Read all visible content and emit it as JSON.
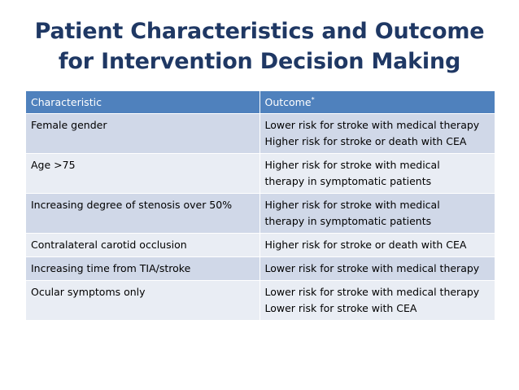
{
  "slide": {
    "title_line1": "Patient Characteristics and Outcome",
    "title_line2": "for Intervention Decision Making"
  },
  "table": {
    "header": {
      "col1": "Characteristic",
      "col2": "Outcome",
      "col2_sup": "*"
    },
    "rows": [
      {
        "characteristic": "Female gender",
        "outcome": [
          "Lower risk for stroke with medical therapy",
          "Higher risk for stroke or death with CEA"
        ]
      },
      {
        "characteristic": "Age >75",
        "outcome": [
          "Higher risk for stroke with medical",
          "therapy in symptomatic patients"
        ]
      },
      {
        "characteristic": "Increasing degree of stenosis over 50%",
        "outcome": [
          "Higher risk for stroke with medical",
          "therapy in symptomatic patients"
        ]
      },
      {
        "characteristic": "Contralateral carotid occlusion",
        "outcome": [
          "Higher risk for stroke or death with CEA"
        ]
      },
      {
        "characteristic": "Increasing time from TIA/stroke",
        "outcome": [
          "Lower risk for stroke with medical therapy"
        ]
      },
      {
        "characteristic": "Ocular symptoms only",
        "outcome": [
          "Lower risk for stroke with medical therapy",
          "Lower risk for stroke with CEA"
        ]
      }
    ]
  },
  "colors": {
    "title": "#1f3864",
    "header_bg": "#4f81bd",
    "row_odd": "#d0d8e8",
    "row_even": "#e9edf4"
  }
}
